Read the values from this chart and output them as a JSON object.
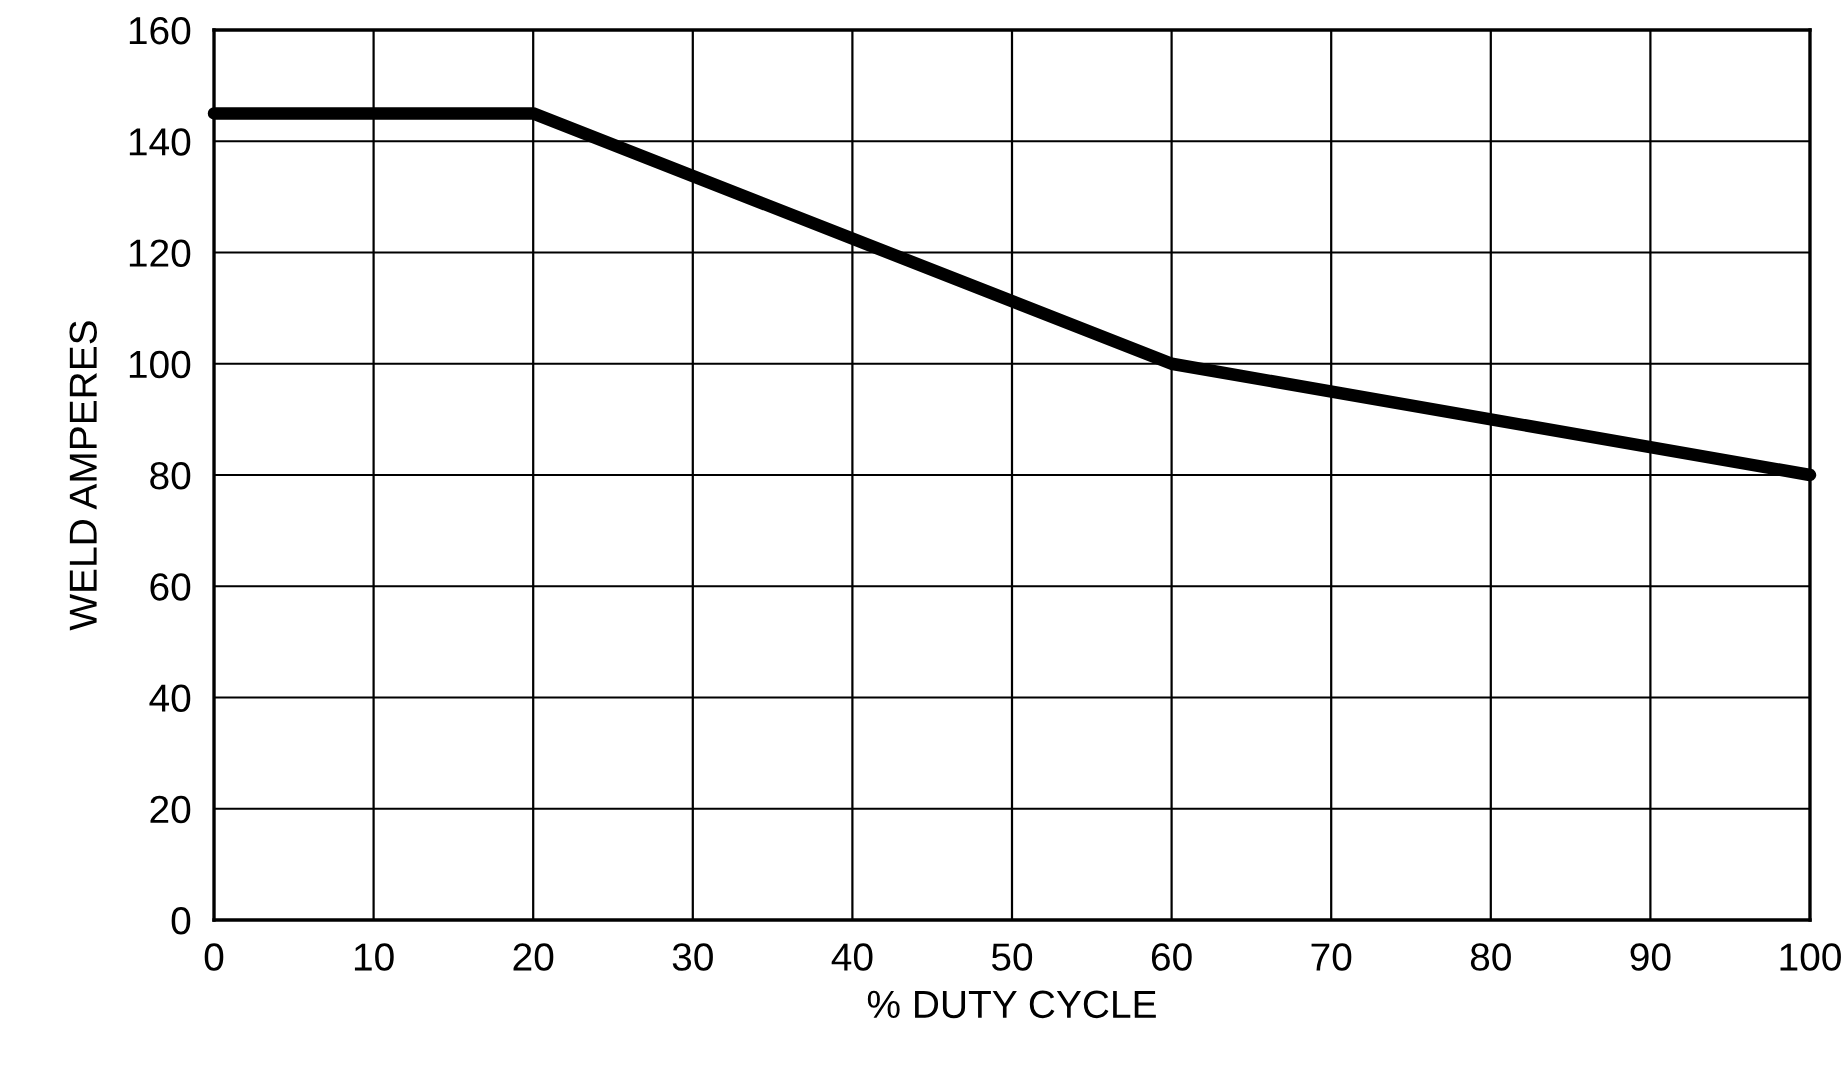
{
  "chart_data": {
    "type": "line",
    "xlabel": "% DUTY CYCLE",
    "ylabel": "WELD AMPERES",
    "x": [
      0,
      20,
      60,
      100
    ],
    "series": [
      {
        "color": "#000000",
        "values": [
          145,
          145,
          100,
          80
        ]
      }
    ],
    "xlim": [
      0,
      100
    ],
    "xticks": [
      0,
      10,
      20,
      30,
      40,
      50,
      60,
      70,
      80,
      90,
      100
    ],
    "ylim": [
      0,
      160
    ],
    "yticks": [
      0,
      20,
      40,
      60,
      80,
      100,
      120,
      140,
      160
    ],
    "grid": true,
    "marker": "none",
    "line_style": "solid"
  }
}
